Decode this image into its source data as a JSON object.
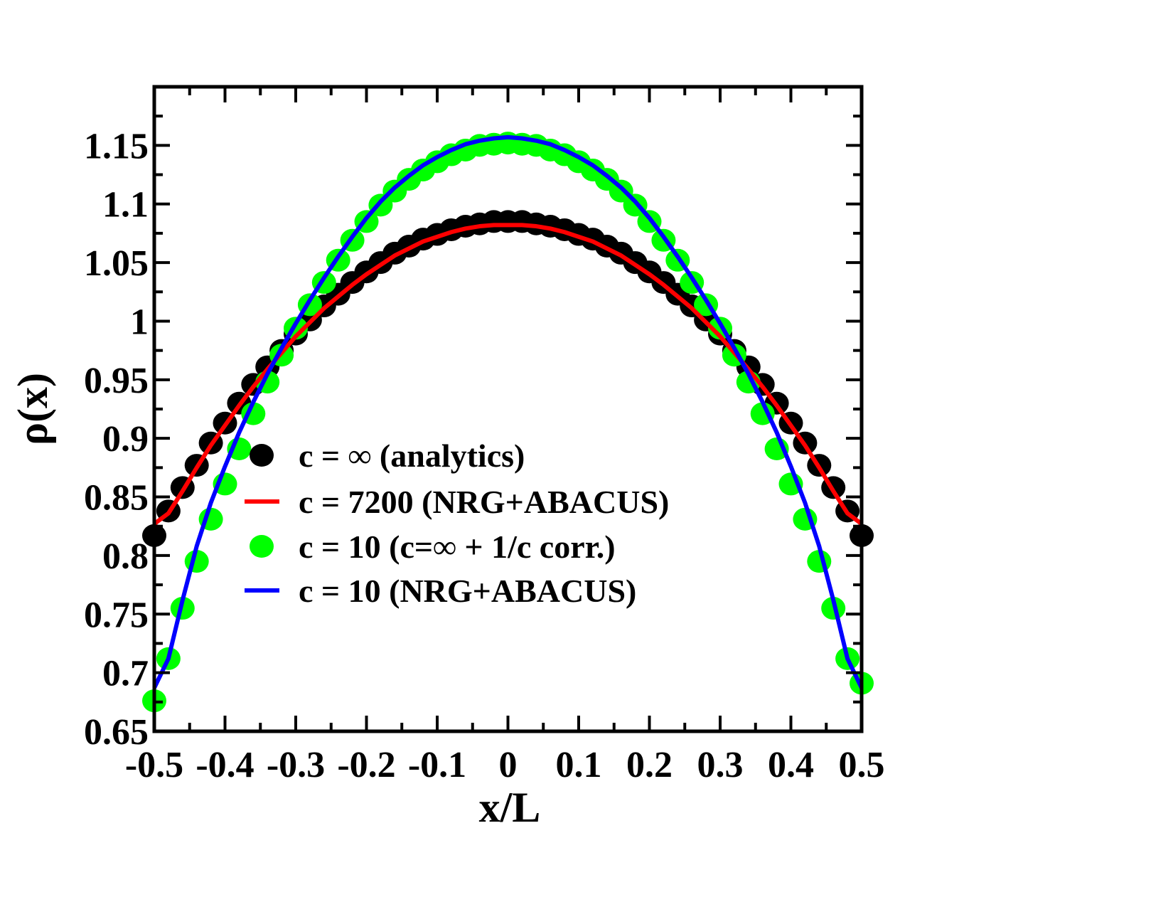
{
  "chart_data": {
    "type": "scatter",
    "title": "",
    "xlabel": "x/L",
    "ylabel": "ρ(x)",
    "xlim": [
      -0.5,
      0.5
    ],
    "ylim": [
      0.65,
      1.2
    ],
    "grid": false,
    "legend_position": "center-bottom",
    "x_ticks": [
      "-0.5",
      "-0.4",
      "-0.3",
      "-0.2",
      "-0.1",
      "0",
      "0.1",
      "0.2",
      "0.3",
      "0.4",
      "0.5"
    ],
    "x_tick_values": [
      -0.5,
      -0.4,
      -0.3,
      -0.2,
      -0.1,
      0,
      0.1,
      0.2,
      0.3,
      0.4,
      0.5
    ],
    "y_ticks": [
      "0.65",
      "0.7",
      "0.75",
      "0.8",
      "0.85",
      "0.9",
      "0.95",
      "1",
      "1.05",
      "1.1",
      "1.15"
    ],
    "y_tick_values": [
      0.65,
      0.7,
      0.75,
      0.8,
      0.85,
      0.9,
      0.95,
      1.0,
      1.05,
      1.1,
      1.15
    ],
    "x": [
      -0.5,
      -0.48,
      -0.46,
      -0.44,
      -0.42,
      -0.4,
      -0.38,
      -0.36,
      -0.34,
      -0.32,
      -0.3,
      -0.28,
      -0.26,
      -0.24,
      -0.22,
      -0.2,
      -0.18,
      -0.16,
      -0.14,
      -0.12,
      -0.1,
      -0.08,
      -0.06,
      -0.04,
      -0.02,
      0,
      0.02,
      0.04,
      0.06,
      0.08,
      0.1,
      0.12,
      0.14,
      0.16,
      0.18,
      0.2,
      0.22,
      0.24,
      0.26,
      0.28,
      0.3,
      0.32,
      0.34,
      0.36,
      0.38,
      0.4,
      0.42,
      0.44,
      0.46,
      0.48,
      0.5
    ],
    "series": [
      {
        "name": "c = ∞ (analytics)",
        "kind": "markers",
        "color": "#000000",
        "values": [
          0.817,
          0.838,
          0.858,
          0.877,
          0.896,
          0.913,
          0.93,
          0.946,
          0.961,
          0.975,
          0.989,
          1.001,
          1.013,
          1.023,
          1.033,
          1.042,
          1.05,
          1.058,
          1.064,
          1.07,
          1.074,
          1.078,
          1.081,
          1.083,
          1.085,
          1.085,
          1.085,
          1.083,
          1.081,
          1.078,
          1.074,
          1.07,
          1.064,
          1.058,
          1.05,
          1.042,
          1.033,
          1.023,
          1.013,
          1.001,
          0.989,
          0.975,
          0.961,
          0.946,
          0.93,
          0.913,
          0.896,
          0.877,
          0.858,
          0.838,
          0.817
        ]
      },
      {
        "name": "c = 7200 (NRG+ABACUS)",
        "kind": "line",
        "color": "#ff0000",
        "values": [
          0.827,
          0.836,
          0.855,
          0.875,
          0.894,
          0.911,
          0.928,
          0.944,
          0.959,
          0.973,
          0.987,
          0.999,
          1.011,
          1.021,
          1.031,
          1.04,
          1.048,
          1.056,
          1.062,
          1.068,
          1.072,
          1.076,
          1.079,
          1.081,
          1.082,
          1.082,
          1.082,
          1.081,
          1.079,
          1.076,
          1.072,
          1.068,
          1.062,
          1.056,
          1.048,
          1.04,
          1.031,
          1.021,
          1.011,
          0.999,
          0.987,
          0.973,
          0.959,
          0.944,
          0.928,
          0.911,
          0.894,
          0.875,
          0.855,
          0.836,
          0.827
        ]
      },
      {
        "name": "c = 10 (c=∞ + 1/c corr.)",
        "kind": "markers",
        "color": "#00ff00",
        "values": [
          0.676,
          0.712,
          0.755,
          0.795,
          0.831,
          0.861,
          0.891,
          0.921,
          0.948,
          0.971,
          0.994,
          1.014,
          1.033,
          1.052,
          1.069,
          1.085,
          1.099,
          1.111,
          1.121,
          1.129,
          1.136,
          1.142,
          1.146,
          1.15,
          1.151,
          1.152,
          1.151,
          1.15,
          1.146,
          1.142,
          1.136,
          1.129,
          1.121,
          1.111,
          1.099,
          1.085,
          1.069,
          1.052,
          1.033,
          1.014,
          0.994,
          0.971,
          0.948,
          0.921,
          0.891,
          0.861,
          0.831,
          0.795,
          0.755,
          0.712,
          0.691
        ]
      },
      {
        "name": "c = 10 (NRG+ABACUS)",
        "kind": "line",
        "color": "#0000ff",
        "values": [
          0.687,
          0.712,
          0.762,
          0.808,
          0.845,
          0.876,
          0.905,
          0.931,
          0.955,
          0.977,
          0.998,
          1.018,
          1.037,
          1.055,
          1.072,
          1.088,
          1.102,
          1.114,
          1.124,
          1.133,
          1.14,
          1.146,
          1.151,
          1.154,
          1.156,
          1.157,
          1.156,
          1.154,
          1.151,
          1.146,
          1.14,
          1.133,
          1.124,
          1.114,
          1.102,
          1.088,
          1.072,
          1.055,
          1.037,
          1.018,
          0.998,
          0.977,
          0.955,
          0.931,
          0.905,
          0.876,
          0.845,
          0.808,
          0.762,
          0.712,
          0.687
        ]
      }
    ]
  }
}
